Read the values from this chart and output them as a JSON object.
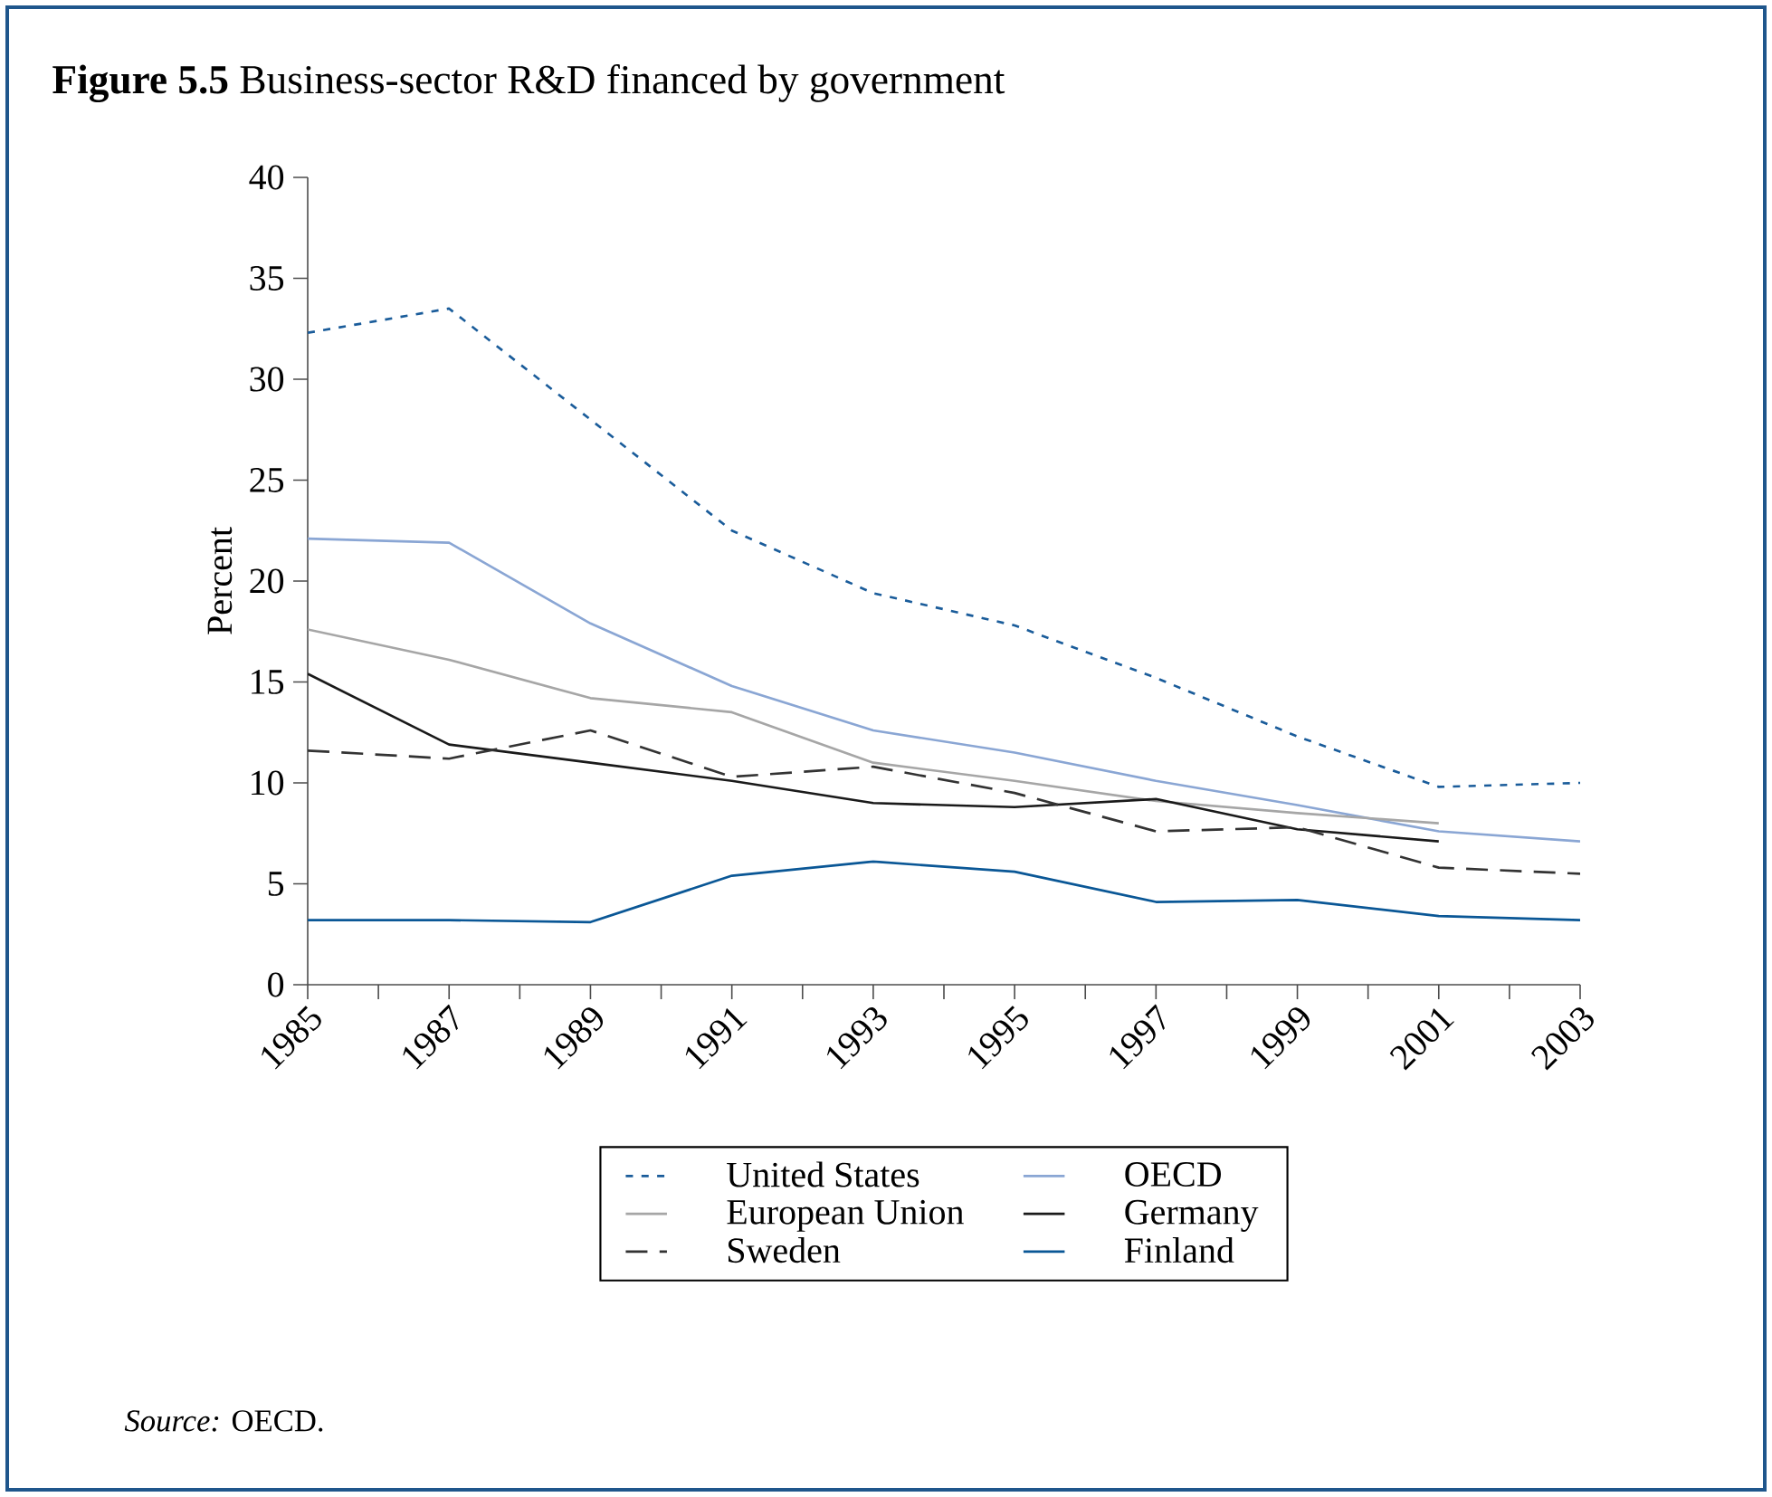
{
  "chart_data": {
    "type": "line",
    "title": "**Figure 5.5** Business-sector R&D financed by government",
    "ylabel": "Percent",
    "x": [
      1985,
      1987,
      1989,
      1991,
      1993,
      1995,
      1997,
      1999,
      2001,
      2003
    ],
    "xlim": [
      1985,
      2003
    ],
    "xticks": [
      1985,
      {
        "value": 1986,
        "label": null
      },
      1987,
      {
        "value": 1988,
        "label": null
      },
      1989,
      {
        "value": 1990,
        "label": null
      },
      1991,
      {
        "value": 1992,
        "label": null
      },
      1993,
      {
        "value": 1994,
        "label": null
      },
      1995,
      {
        "value": 1996,
        "label": null
      },
      1997,
      {
        "value": 1998,
        "label": null
      },
      1999,
      {
        "value": 2000,
        "label": null
      },
      2001,
      {
        "value": 2002,
        "label": null
      },
      2003
    ],
    "ylim": [
      0,
      40
    ],
    "yticks": [
      0,
      5,
      10,
      15,
      20,
      25,
      30,
      35,
      40
    ],
    "legend": "bottom",
    "marker": "none",
    "series": [
      {
        "name": "United States",
        "color": "#1a5c9a",
        "line_style": "dotted",
        "values": [
          32.3,
          33.5,
          28.0,
          22.5,
          19.4,
          17.8,
          15.2,
          12.3,
          9.8,
          10.0
        ]
      },
      {
        "name": "OECD",
        "color": "#8aa6d4",
        "line_style": "solid",
        "values": [
          22.1,
          21.9,
          17.9,
          14.8,
          12.6,
          11.5,
          10.1,
          8.9,
          7.6,
          7.1
        ]
      },
      {
        "name": "European Union",
        "color": "#a6a6a6",
        "line_style": "solid",
        "values": [
          17.6,
          16.1,
          14.2,
          13.5,
          11.0,
          10.1,
          9.1,
          8.5,
          8.0,
          null
        ]
      },
      {
        "name": "Germany",
        "color": "#1a1a1a",
        "line_style": "solid",
        "values": [
          15.4,
          11.9,
          11.0,
          10.1,
          9.0,
          8.8,
          9.2,
          7.7,
          7.1,
          null
        ]
      },
      {
        "name": "Sweden",
        "color": "#333333",
        "line_style": "dashed",
        "values": [
          11.6,
          11.2,
          12.6,
          10.3,
          10.8,
          9.5,
          7.6,
          7.8,
          5.8,
          5.5
        ]
      },
      {
        "name": "Finland",
        "color": "#0a5796",
        "line_style": "solid",
        "values": [
          3.2,
          3.2,
          3.1,
          5.4,
          6.1,
          5.6,
          4.1,
          4.2,
          3.4,
          3.2
        ]
      }
    ],
    "annotations": [
      "*Source:* OECD."
    ]
  }
}
